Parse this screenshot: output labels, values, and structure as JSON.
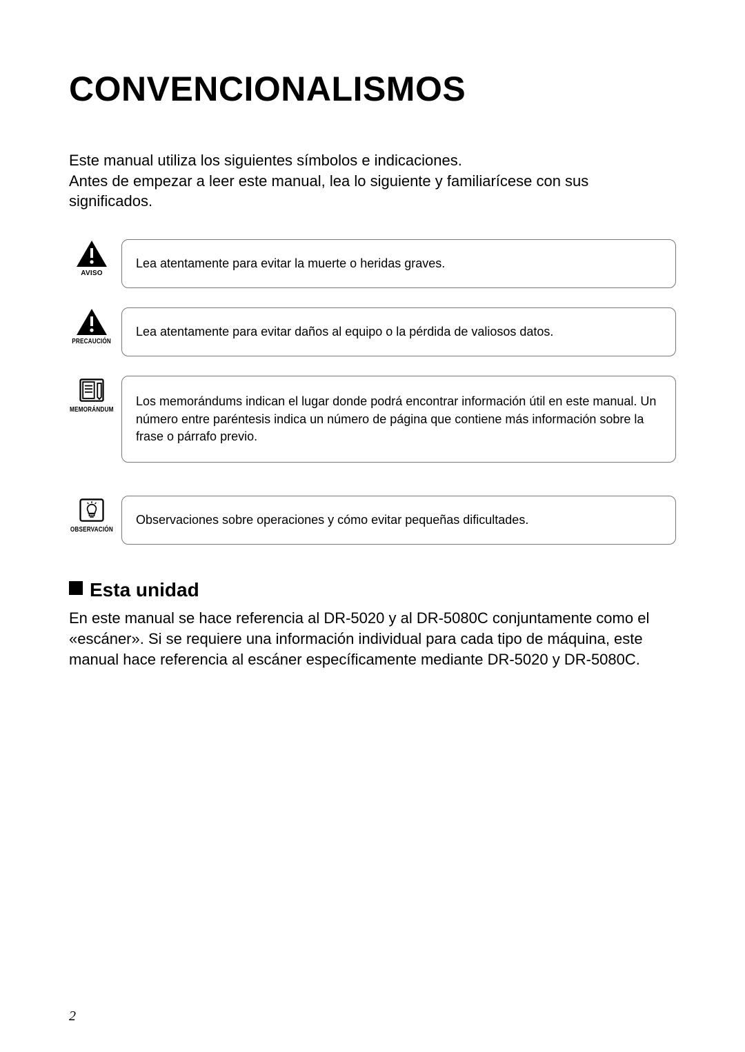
{
  "title": "CONVENCIONALISMOS",
  "intro": "Este manual utiliza los siguientes símbolos e indicaciones.\nAntes de empezar a leer este manual, lea lo siguiente y familiarícese con sus significados.",
  "symbols": [
    {
      "icon": "warning-triangle-icon",
      "label": "AVISO",
      "label_condensed": false,
      "text": "Lea atentamente para evitar la muerte o heridas graves.",
      "border_color": "#777777",
      "tall": false
    },
    {
      "icon": "warning-triangle-icon",
      "label": "PRECAUCIÓN",
      "label_condensed": true,
      "text": "Lea atentamente para evitar daños al equipo o la pérdida de valiosos datos.",
      "border_color": "#777777",
      "tall": false
    },
    {
      "icon": "memo-page-icon",
      "label": "MEMORÁNDUM",
      "label_condensed": true,
      "text": "Los memorándums indican el lugar donde podrá encontrar información útil en este manual. Un número entre paréntesis indica un número de página que contiene más información sobre la frase o párrafo previo.",
      "border_color": "#777777",
      "tall": true
    },
    {
      "icon": "lightbulb-icon",
      "label": "OBSERVACIÓN",
      "label_condensed": true,
      "text": "Observaciones sobre operaciones y cómo evitar pequeñas dificultades.",
      "border_color": "#777777",
      "tall": false
    }
  ],
  "section": {
    "heading": "Esta unidad",
    "body": "En este manual se hace referencia al DR-5020 y al DR-5080C conjuntamente como el «escáner». Si se requiere una información individual para cada tipo de máquina, este manual hace referencia al escáner específicamente mediante DR-5020 y DR-5080C."
  },
  "page_number": "2",
  "colors": {
    "text": "#000000",
    "border": "#777777",
    "background": "#ffffff"
  },
  "typography": {
    "title_fontsize": 50,
    "intro_fontsize": 22,
    "box_fontsize": 18,
    "heading_fontsize": 28,
    "body_fontsize": 22,
    "label_fontsize": 10
  }
}
